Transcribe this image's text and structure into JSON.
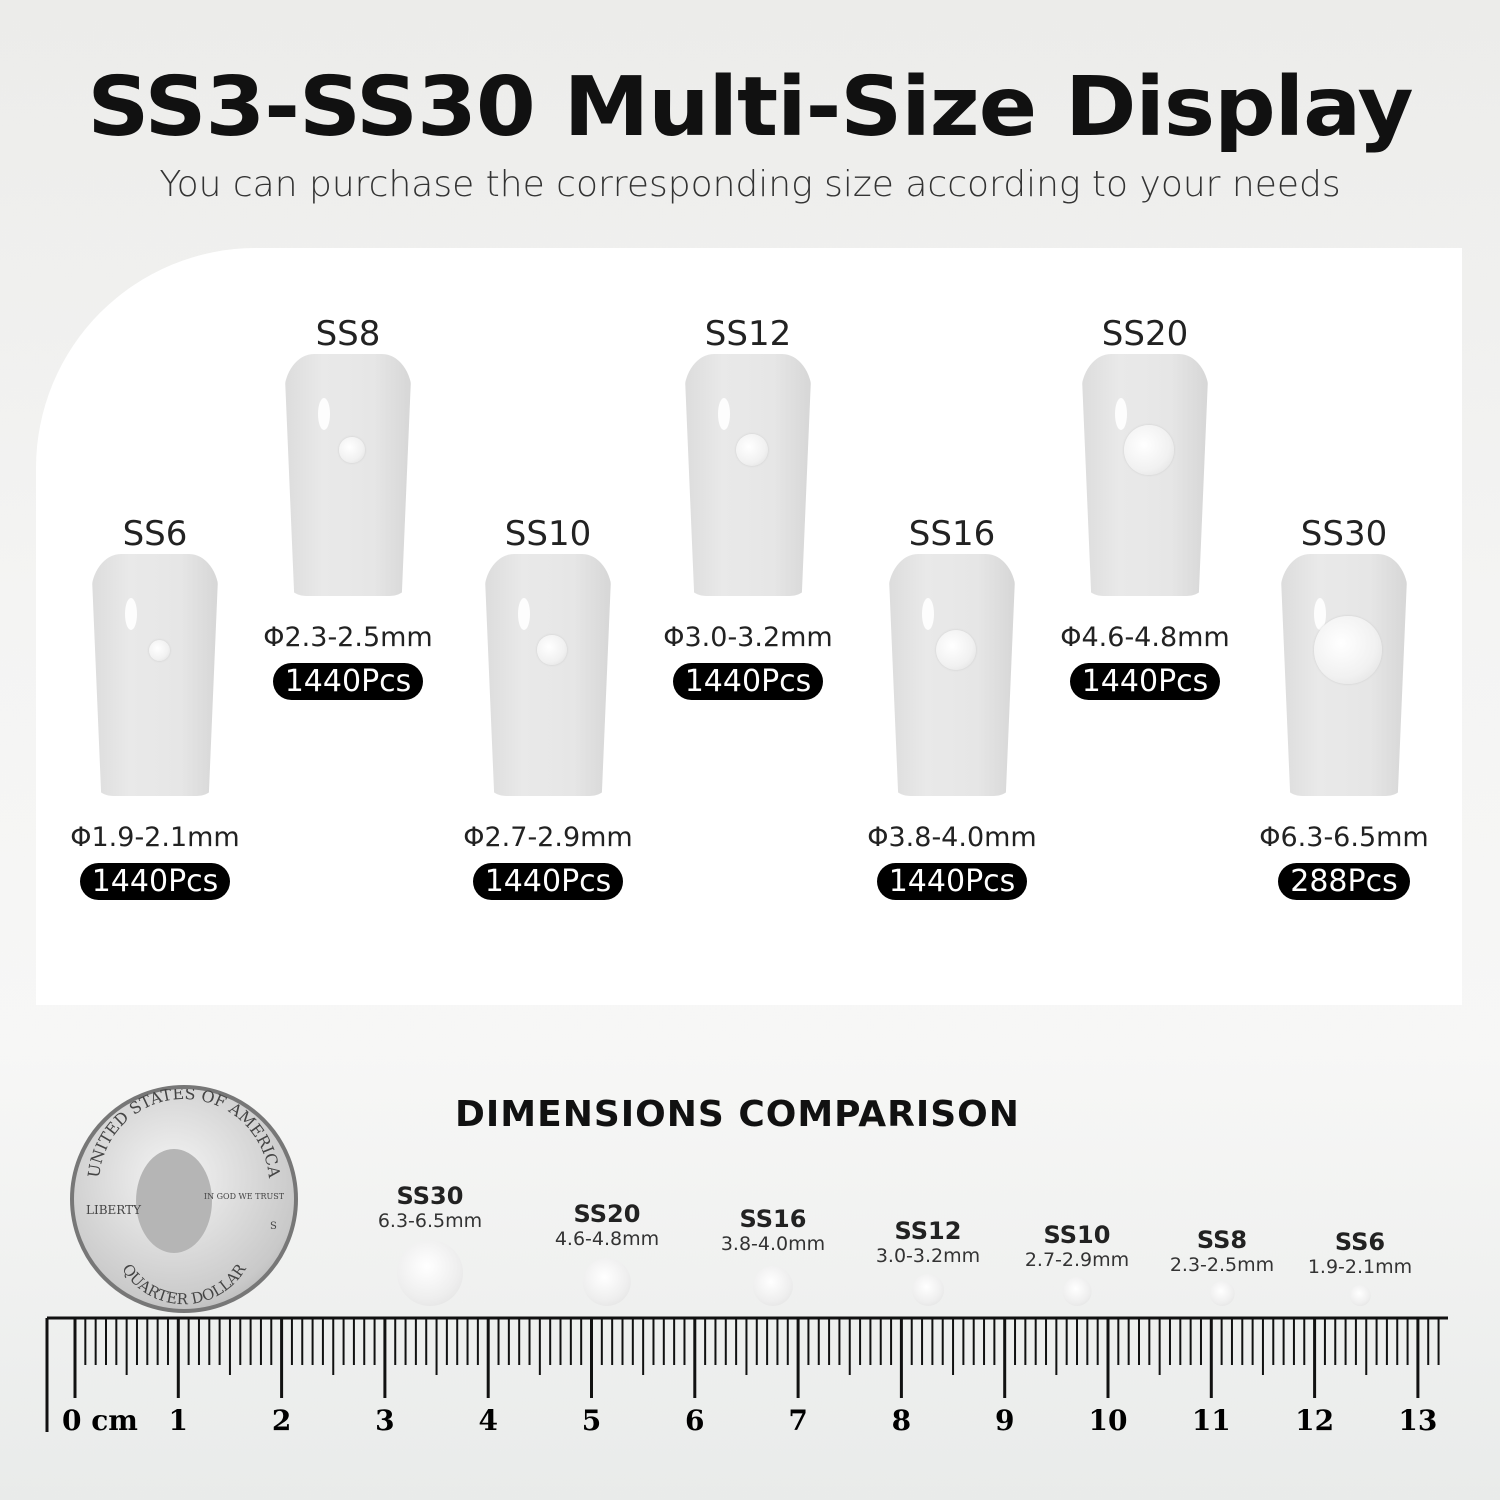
{
  "header": {
    "title": "SS3-SS30 Multi-Size Display",
    "subtitle": "You can purchase the corresponding size according to your needs"
  },
  "sizes": [
    {
      "name": "SS6",
      "diameter": "Φ1.9-2.1mm",
      "count": "1440Pcs",
      "row": "bottom",
      "mm": 2.0
    },
    {
      "name": "SS8",
      "diameter": "Φ2.3-2.5mm",
      "count": "1440Pcs",
      "row": "top",
      "mm": 2.4
    },
    {
      "name": "SS10",
      "diameter": "Φ2.7-2.9mm",
      "count": "1440Pcs",
      "row": "bottom",
      "mm": 2.8
    },
    {
      "name": "SS12",
      "diameter": "Φ3.0-3.2mm",
      "count": "1440Pcs",
      "row": "top",
      "mm": 3.1
    },
    {
      "name": "SS16",
      "diameter": "Φ3.8-4.0mm",
      "count": "1440Pcs",
      "row": "bottom",
      "mm": 3.9
    },
    {
      "name": "SS20",
      "diameter": "Φ4.6-4.8mm",
      "count": "1440Pcs",
      "row": "top",
      "mm": 4.7
    },
    {
      "name": "SS30",
      "diameter": "Φ6.3-6.5mm",
      "count": "288Pcs",
      "row": "bottom",
      "mm": 6.4
    }
  ],
  "comparison": {
    "title": "DIMENSIONS COMPARISON",
    "items": [
      {
        "name": "SS30",
        "range": "6.3-6.5mm"
      },
      {
        "name": "SS20",
        "range": "4.6-4.8mm"
      },
      {
        "name": "SS16",
        "range": "3.8-4.0mm"
      },
      {
        "name": "SS12",
        "range": "3.0-3.2mm"
      },
      {
        "name": "SS10",
        "range": "2.7-2.9mm"
      },
      {
        "name": "SS8",
        "range": "2.3-2.5mm"
      },
      {
        "name": "SS6",
        "range": "1.9-2.1mm"
      }
    ]
  },
  "coin": {
    "top": "UNITED STATES OF AMERICA",
    "motto": "IN GOD WE TRUST",
    "left": "LIBERTY",
    "bottom": "QUARTER DOLLAR",
    "mint": "S"
  },
  "ruler": {
    "unit": "cm",
    "labels": [
      "0 cm",
      "1",
      "2",
      "3",
      "4",
      "5",
      "6",
      "7",
      "8",
      "9",
      "10",
      "11",
      "12",
      "13"
    ]
  }
}
